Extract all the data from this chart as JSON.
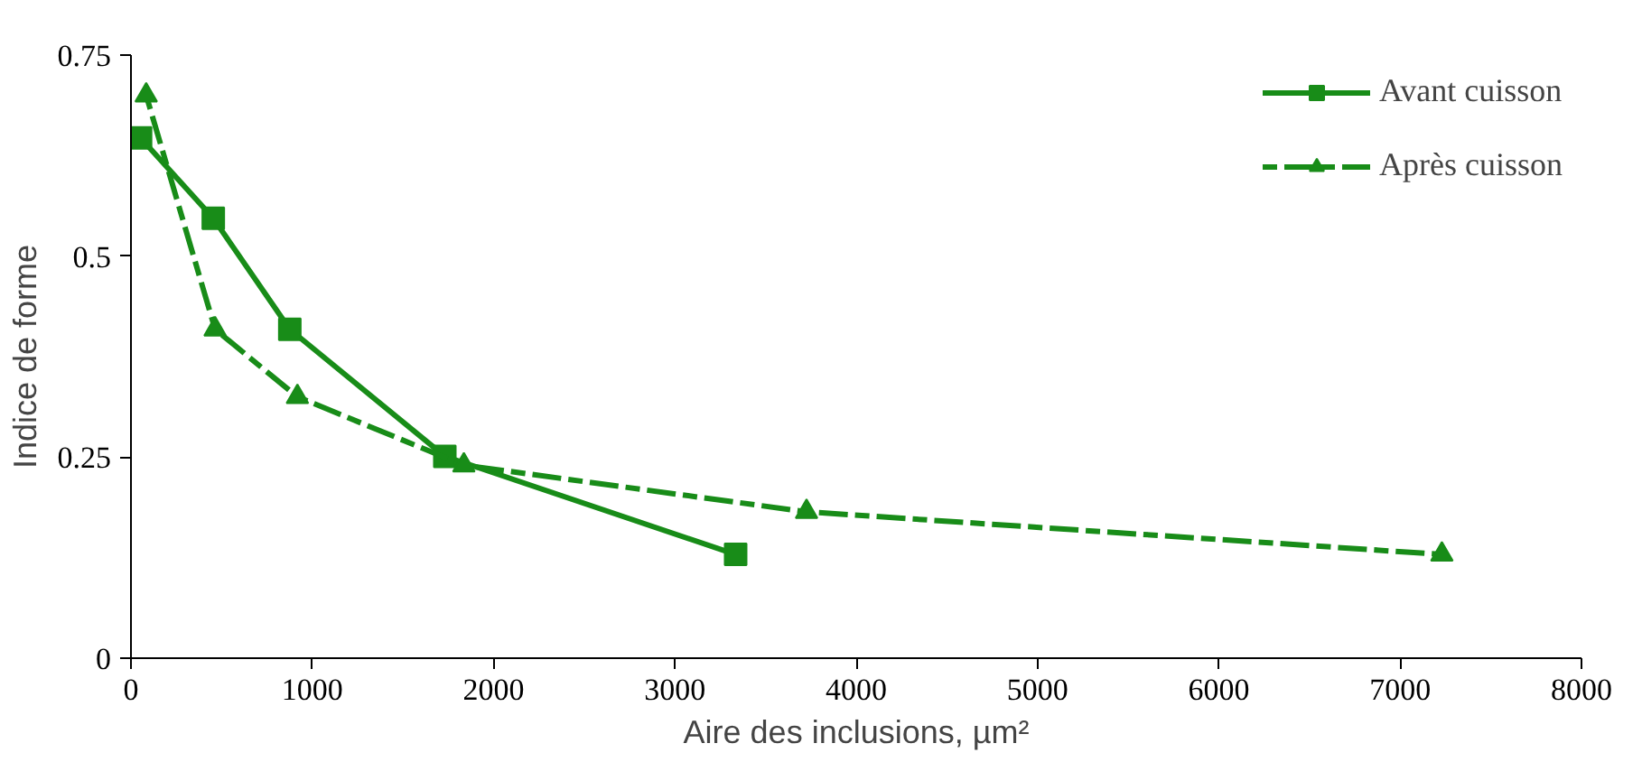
{
  "chart_data": {
    "type": "line",
    "xlabel": "Aire des inclusions, µm²",
    "ylabel": "Indice de forme",
    "xlim": [
      0,
      8000
    ],
    "xticks": [
      0,
      1000,
      2000,
      3000,
      4000,
      5000,
      6000,
      7000,
      8000
    ],
    "ylim": [
      0,
      0.75
    ],
    "yticks": [
      0,
      0.25,
      0.5,
      0.75
    ],
    "grid": false,
    "legend": "top right",
    "series": [
      {
        "name": "Avant cuisson",
        "color": "#188c18",
        "marker": "square",
        "line_style": "solid",
        "x": [
          53,
          454,
          876,
          1731,
          3335
        ],
        "values": [
          0.647,
          0.547,
          0.409,
          0.251,
          0.129
        ]
      },
      {
        "name": "Après cuisson",
        "color": "#188c18",
        "marker": "triangle",
        "line_style": "dashed",
        "x": [
          84,
          464,
          918,
          1836,
          3726,
          7230
        ],
        "values": [
          0.7,
          0.409,
          0.325,
          0.24,
          0.182,
          0.129
        ]
      }
    ]
  }
}
